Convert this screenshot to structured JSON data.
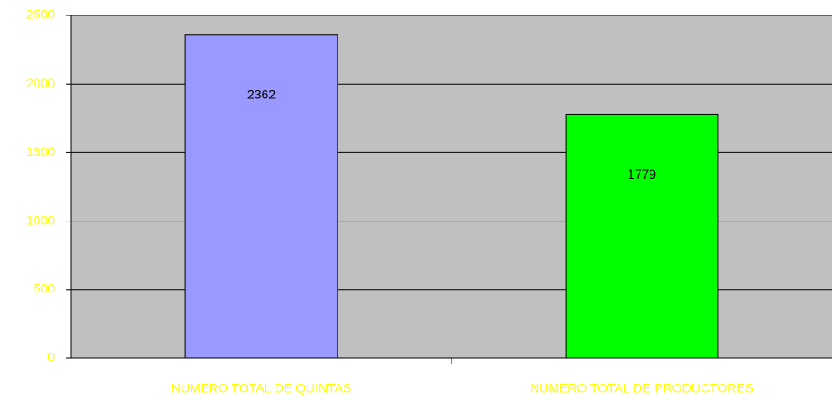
{
  "chart_data": {
    "type": "bar",
    "categories": [
      "NUMERO TOTAL DE QUINTAS",
      "NUMERO TOTAL DE PRODUCTORES"
    ],
    "values": [
      2362,
      1779
    ],
    "colors": [
      "#9999ff",
      "#00ff00"
    ],
    "ylim": [
      0,
      2500
    ],
    "yticks": [
      0,
      500,
      1000,
      1500,
      2000,
      2500
    ],
    "grid": true
  }
}
